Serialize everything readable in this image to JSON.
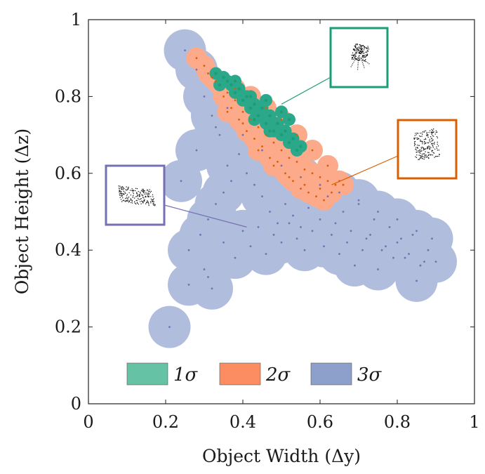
{
  "chart_data": {
    "type": "scatter",
    "xlabel": "Object Width (Δy)",
    "ylabel": "Object Height (Δz)",
    "xlim": [
      0,
      1
    ],
    "ylim": [
      0,
      1
    ],
    "x_ticks": [
      "0",
      "0.2",
      "0.4",
      "0.6",
      "0.8",
      "1"
    ],
    "y_ticks": [
      "0",
      "0.2",
      "0.4",
      "0.6",
      "0.8",
      "1"
    ],
    "grid": false,
    "legend_position": "bottom",
    "legend": [
      {
        "label": "1σ",
        "color": "#66c2a5"
      },
      {
        "label": "2σ",
        "color": "#fc8d62"
      },
      {
        "label": "3σ",
        "color": "#8da0cb"
      }
    ],
    "series": [
      {
        "name": "3σ",
        "region_color": "#b0bddc",
        "point_color": "#7570b3",
        "x": [
          0.25,
          0.28,
          0.3,
          0.32,
          0.34,
          0.26,
          0.29,
          0.31,
          0.33,
          0.35,
          0.37,
          0.36,
          0.39,
          0.41,
          0.43,
          0.45,
          0.47,
          0.49,
          0.51,
          0.53,
          0.55,
          0.57,
          0.6,
          0.62,
          0.64,
          0.66,
          0.68,
          0.7,
          0.72,
          0.74,
          0.76,
          0.78,
          0.8,
          0.82,
          0.84,
          0.86,
          0.88,
          0.9,
          0.89,
          0.3,
          0.32,
          0.35,
          0.38,
          0.4,
          0.42,
          0.44,
          0.46,
          0.48,
          0.5,
          0.52,
          0.54,
          0.56,
          0.58,
          0.61,
          0.63,
          0.65,
          0.67,
          0.69,
          0.71,
          0.73,
          0.75,
          0.77,
          0.79,
          0.81,
          0.83,
          0.85,
          0.87,
          0.21,
          0.26,
          0.31,
          0.24,
          0.28,
          0.33,
          0.36,
          0.4,
          0.45,
          0.5,
          0.55,
          0.6,
          0.65,
          0.7,
          0.75,
          0.8,
          0.85
        ],
        "y": [
          0.92,
          0.87,
          0.8,
          0.75,
          0.7,
          0.4,
          0.44,
          0.48,
          0.52,
          0.55,
          0.58,
          0.62,
          0.65,
          0.6,
          0.57,
          0.54,
          0.5,
          0.47,
          0.52,
          0.49,
          0.46,
          0.51,
          0.48,
          0.54,
          0.47,
          0.5,
          0.45,
          0.52,
          0.43,
          0.48,
          0.4,
          0.46,
          0.42,
          0.38,
          0.44,
          0.36,
          0.4,
          0.37,
          0.43,
          0.35,
          0.3,
          0.42,
          0.38,
          0.45,
          0.41,
          0.46,
          0.39,
          0.44,
          0.42,
          0.47,
          0.43,
          0.4,
          0.45,
          0.41,
          0.44,
          0.39,
          0.42,
          0.36,
          0.4,
          0.44,
          0.35,
          0.41,
          0.38,
          0.43,
          0.39,
          0.32,
          0.37,
          0.2,
          0.31,
          0.33,
          0.58,
          0.66,
          0.72,
          0.77,
          0.7,
          0.66,
          0.62,
          0.59,
          0.57,
          0.55,
          0.53,
          0.5,
          0.48,
          0.45
        ]
      },
      {
        "name": "2σ",
        "region_color": "#fcaa8a",
        "point_color": "#d95f02",
        "x": [
          0.28,
          0.3,
          0.32,
          0.34,
          0.36,
          0.38,
          0.4,
          0.42,
          0.44,
          0.46,
          0.48,
          0.5,
          0.52,
          0.54,
          0.56,
          0.58,
          0.6,
          0.62,
          0.64,
          0.66,
          0.31,
          0.33,
          0.35,
          0.37,
          0.39,
          0.41,
          0.43,
          0.45,
          0.47,
          0.49,
          0.51,
          0.53,
          0.55,
          0.57,
          0.59,
          0.61,
          0.63,
          0.65,
          0.36,
          0.4,
          0.44,
          0.48,
          0.52,
          0.56,
          0.6,
          0.38,
          0.42,
          0.46,
          0.5,
          0.54,
          0.58,
          0.62
        ],
        "y": [
          0.9,
          0.88,
          0.85,
          0.83,
          0.81,
          0.79,
          0.76,
          0.74,
          0.72,
          0.7,
          0.68,
          0.66,
          0.64,
          0.63,
          0.61,
          0.6,
          0.59,
          0.58,
          0.57,
          0.57,
          0.86,
          0.84,
          0.8,
          0.77,
          0.74,
          0.71,
          0.69,
          0.67,
          0.64,
          0.63,
          0.6,
          0.58,
          0.56,
          0.55,
          0.54,
          0.53,
          0.55,
          0.58,
          0.76,
          0.73,
          0.66,
          0.62,
          0.59,
          0.57,
          0.56,
          0.82,
          0.8,
          0.77,
          0.74,
          0.7,
          0.66,
          0.62
        ]
      },
      {
        "name": "1σ",
        "region_color": "#2aa889",
        "point_color": "#1b9e77",
        "x": [
          0.33,
          0.35,
          0.37,
          0.39,
          0.41,
          0.43,
          0.45,
          0.47,
          0.49,
          0.51,
          0.53,
          0.55,
          0.36,
          0.38,
          0.4,
          0.42,
          0.44,
          0.46,
          0.48,
          0.5,
          0.52,
          0.54,
          0.34,
          0.38,
          0.42,
          0.46,
          0.5,
          0.52,
          0.47,
          0.43
        ],
        "y": [
          0.86,
          0.85,
          0.83,
          0.82,
          0.8,
          0.78,
          0.77,
          0.75,
          0.73,
          0.71,
          0.69,
          0.67,
          0.84,
          0.81,
          0.79,
          0.77,
          0.75,
          0.73,
          0.71,
          0.7,
          0.68,
          0.66,
          0.83,
          0.84,
          0.8,
          0.79,
          0.76,
          0.74,
          0.71,
          0.74
        ]
      }
    ],
    "annotations": [
      {
        "name": "chair-inset",
        "color": "#1b9e77",
        "anchor_x": 0.5,
        "anchor_y": 0.78
      },
      {
        "name": "armchair-inset",
        "color": "#d95f02",
        "anchor_x": 0.63,
        "anchor_y": 0.57
      },
      {
        "name": "box-inset",
        "color": "#7570b3",
        "anchor_x": 0.41,
        "anchor_y": 0.46
      }
    ]
  }
}
